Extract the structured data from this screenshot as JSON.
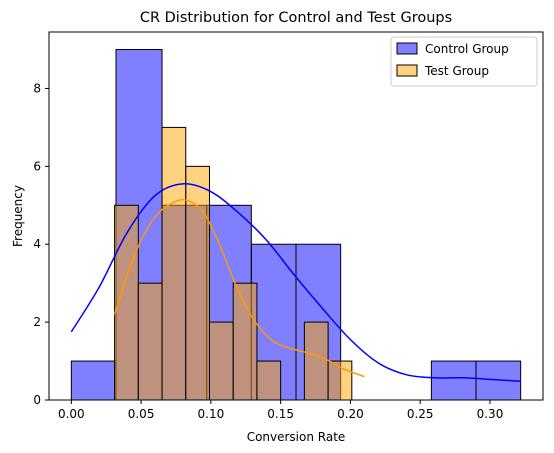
{
  "chart_data": {
    "type": "histogram",
    "title": "CR Distribution for Control and Test Groups",
    "xlabel": "Conversion Rate",
    "ylabel": "Frequency",
    "xlim": [
      -0.016,
      0.338
    ],
    "ylim": [
      0,
      9.45
    ],
    "xticks": [
      "0.00",
      "0.05",
      "0.10",
      "0.15",
      "0.20",
      "0.25",
      "0.30"
    ],
    "yticks": [
      "0",
      "2",
      "4",
      "6",
      "8"
    ],
    "legend_position": "top-right",
    "series": [
      {
        "name": "Control Group",
        "color": "#0000ff",
        "bins": [
          {
            "x0": 0.0,
            "x1": 0.032,
            "count": 1
          },
          {
            "x0": 0.032,
            "x1": 0.065,
            "count": 9
          },
          {
            "x0": 0.065,
            "x1": 0.097,
            "count": 5
          },
          {
            "x0": 0.097,
            "x1": 0.129,
            "count": 5
          },
          {
            "x0": 0.129,
            "x1": 0.161,
            "count": 4
          },
          {
            "x0": 0.161,
            "x1": 0.193,
            "count": 4
          },
          {
            "x0": 0.258,
            "x1": 0.29,
            "count": 1
          },
          {
            "x0": 0.29,
            "x1": 0.322,
            "count": 1
          }
        ],
        "kde": {
          "x": [
            0.0,
            0.02,
            0.04,
            0.06,
            0.08,
            0.1,
            0.12,
            0.14,
            0.16,
            0.18,
            0.2,
            0.22,
            0.24,
            0.26,
            0.28,
            0.3,
            0.322
          ],
          "y": [
            1.75,
            2.9,
            4.3,
            5.25,
            5.55,
            5.35,
            4.8,
            4.1,
            3.2,
            2.35,
            1.55,
            0.95,
            0.65,
            0.57,
            0.57,
            0.53,
            0.48
          ]
        }
      },
      {
        "name": "Test Group",
        "color": "#ffa500",
        "bins": [
          {
            "x0": 0.031,
            "x1": 0.048,
            "count": 5
          },
          {
            "x0": 0.048,
            "x1": 0.065,
            "count": 3
          },
          {
            "x0": 0.065,
            "x1": 0.082,
            "count": 7
          },
          {
            "x0": 0.082,
            "x1": 0.099,
            "count": 6
          },
          {
            "x0": 0.099,
            "x1": 0.116,
            "count": 2
          },
          {
            "x0": 0.116,
            "x1": 0.133,
            "count": 3
          },
          {
            "x0": 0.133,
            "x1": 0.15,
            "count": 1
          },
          {
            "x0": 0.167,
            "x1": 0.184,
            "count": 2
          },
          {
            "x0": 0.184,
            "x1": 0.201,
            "count": 1
          }
        ],
        "kde": {
          "x": [
            0.031,
            0.045,
            0.06,
            0.075,
            0.085,
            0.095,
            0.105,
            0.115,
            0.125,
            0.135,
            0.145,
            0.155,
            0.165,
            0.175,
            0.185,
            0.195,
            0.21
          ],
          "y": [
            2.2,
            3.7,
            4.7,
            5.1,
            5.1,
            4.8,
            4.1,
            3.2,
            2.4,
            1.85,
            1.5,
            1.35,
            1.25,
            1.15,
            1.0,
            0.8,
            0.6
          ]
        }
      }
    ]
  }
}
